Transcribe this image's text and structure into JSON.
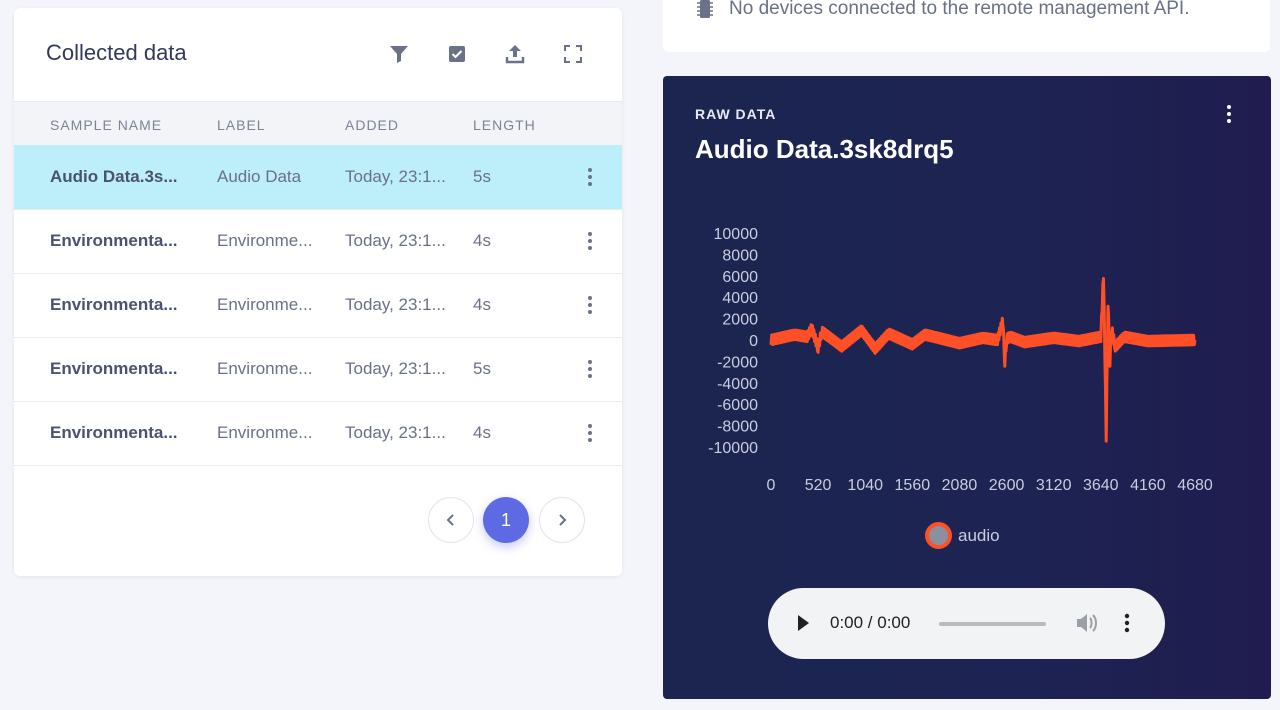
{
  "collected": {
    "title": "Collected data",
    "toolbar_icons": [
      "filter-icon",
      "checkbox-icon",
      "upload-icon",
      "expand-icon"
    ],
    "columns": [
      "SAMPLE NAME",
      "LABEL",
      "ADDED",
      "LENGTH"
    ],
    "rows": [
      {
        "name": "Audio Data.3s...",
        "label": "Audio Data",
        "added": "Today, 23:1...",
        "length": "5s",
        "selected": true
      },
      {
        "name": "Environmenta...",
        "label": "Environme...",
        "added": "Today, 23:1...",
        "length": "4s",
        "selected": false
      },
      {
        "name": "Environmenta...",
        "label": "Environme...",
        "added": "Today, 23:1...",
        "length": "4s",
        "selected": false
      },
      {
        "name": "Environmenta...",
        "label": "Environme...",
        "added": "Today, 23:1...",
        "length": "5s",
        "selected": false
      },
      {
        "name": "Environmenta...",
        "label": "Environme...",
        "added": "Today, 23:1...",
        "length": "4s",
        "selected": false
      }
    ],
    "pagination": {
      "current": "1"
    }
  },
  "devices": {
    "message": "No devices connected to the remote management API."
  },
  "raw": {
    "kicker": "RAW DATA",
    "title": "Audio Data.3sk8drq5",
    "audio": {
      "time": "0:00 / 0:00"
    }
  },
  "colors": {
    "accent": "#5d6ae3",
    "selected_row": "#bdeffa",
    "series": "#ff4f26",
    "panel_bg": "#1c2550"
  },
  "chart_data": {
    "type": "line",
    "title": "",
    "xlabel": "",
    "ylabel": "",
    "yticks": [
      "10000",
      "8000",
      "6000",
      "4000",
      "2000",
      "0",
      "-2000",
      "-4000",
      "-6000",
      "-8000",
      "-10000"
    ],
    "xticks": [
      "0",
      "520",
      "1040",
      "1560",
      "2080",
      "2600",
      "3120",
      "3640",
      "4160",
      "4680"
    ],
    "ylim": [
      -10000,
      10000
    ],
    "xlim": [
      0,
      4680
    ],
    "legend": "bottom-center",
    "series": [
      {
        "name": "audio",
        "x": [
          0,
          260,
          400,
          450,
          520,
          560,
          780,
          1000,
          1150,
          1300,
          1560,
          1700,
          1800,
          2080,
          2340,
          2500,
          2560,
          2580,
          2600,
          2640,
          2800,
          3120,
          3400,
          3640,
          3670,
          3700,
          3720,
          3740,
          3760,
          3800,
          3900,
          4160,
          4680
        ],
        "y": [
          0,
          500,
          300,
          1100,
          -700,
          800,
          -600,
          900,
          -800,
          600,
          -400,
          500,
          300,
          -300,
          200,
          0,
          1800,
          -2000,
          100,
          300,
          -200,
          200,
          -100,
          300,
          6200,
          -9000,
          3600,
          -2000,
          1000,
          -600,
          300,
          -100,
          0
        ]
      }
    ]
  }
}
